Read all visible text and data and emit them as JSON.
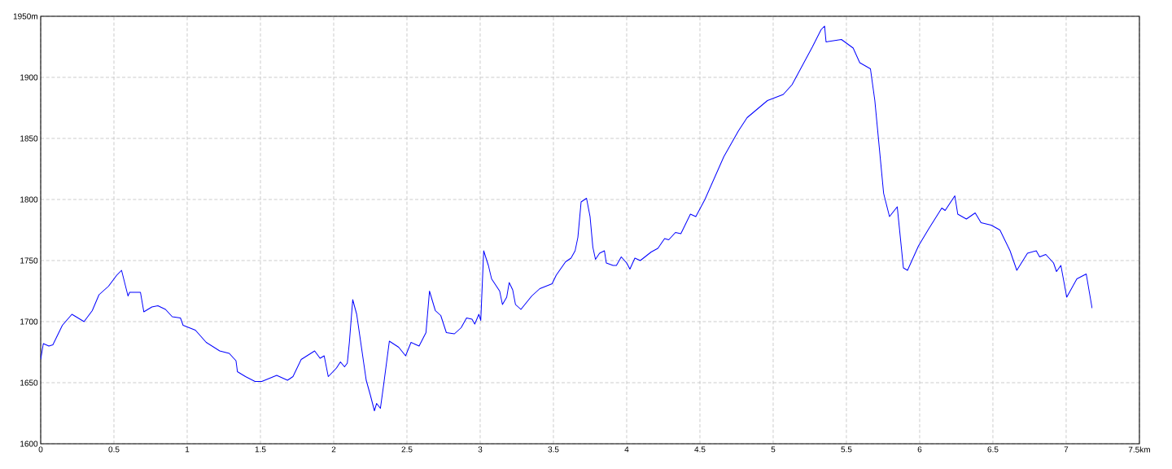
{
  "chart_data": {
    "type": "line",
    "color": "#0000ff",
    "grid": true,
    "line_style": "solid",
    "marker": "none",
    "xlim": [
      0,
      7.5
    ],
    "ylim": [
      1600,
      1950
    ],
    "xticks": [
      0,
      0.5,
      1,
      1.5,
      2,
      2.5,
      3,
      3.5,
      4,
      4.5,
      5,
      5.5,
      6,
      6.5,
      7,
      {
        "value": 7.5,
        "label": "7.5km"
      }
    ],
    "yticks": [
      1600,
      1650,
      1700,
      1750,
      1800,
      1850,
      1900,
      {
        "value": 1950,
        "label": "1950m"
      }
    ],
    "x": [
      0,
      0.018,
      0.056,
      0.083,
      0.148,
      0.213,
      0.241,
      0.296,
      0.352,
      0.398,
      0.463,
      0.519,
      0.552,
      0.596,
      0.607,
      0.681,
      0.704,
      0.759,
      0.8,
      0.852,
      0.898,
      0.954,
      0.972,
      1.056,
      1.13,
      1.222,
      1.287,
      1.333,
      1.343,
      1.398,
      1.463,
      1.509,
      1.611,
      1.685,
      1.722,
      1.778,
      1.87,
      1.907,
      1.935,
      1.963,
      2.019,
      2.046,
      2.074,
      2.093,
      2.107,
      2.13,
      2.157,
      2.222,
      2.25,
      2.278,
      2.293,
      2.319,
      2.343,
      2.38,
      2.444,
      2.491,
      2.528,
      2.583,
      2.63,
      2.654,
      2.694,
      2.731,
      2.769,
      2.824,
      2.87,
      2.907,
      2.944,
      2.963,
      2.991,
      3.004,
      3.024,
      3.056,
      3.078,
      3.111,
      3.133,
      3.152,
      3.181,
      3.198,
      3.222,
      3.241,
      3.278,
      3.352,
      3.407,
      3.491,
      3.519,
      3.583,
      3.62,
      3.648,
      3.667,
      3.689,
      3.726,
      3.75,
      3.769,
      3.787,
      3.815,
      3.848,
      3.861,
      3.907,
      3.93,
      3.963,
      4.0,
      4.022,
      4.056,
      4.093,
      4.167,
      4.213,
      4.259,
      4.287,
      4.333,
      4.37,
      4.435,
      4.472,
      4.534,
      4.663,
      4.762,
      4.822,
      4.961,
      5.069,
      5.129,
      5.268,
      5.327,
      5.351,
      5.361,
      5.466,
      5.546,
      5.591,
      5.664,
      5.694,
      5.754,
      5.794,
      5.847,
      5.889,
      5.917,
      5.992,
      6.062,
      6.151,
      6.174,
      6.24,
      6.26,
      6.319,
      6.379,
      6.419,
      6.488,
      6.548,
      6.617,
      6.663,
      6.736,
      6.796,
      6.819,
      6.861,
      6.914,
      6.934,
      6.964,
      7.004,
      7.073,
      7.137,
      7.177
    ],
    "values": [
      1669,
      1682,
      1680,
      1681,
      1697,
      1706,
      1704,
      1700,
      1709,
      1722,
      1729,
      1738,
      1742,
      1721,
      1724,
      1724,
      1708,
      1712,
      1713,
      1710,
      1704,
      1703,
      1697,
      1693,
      1683,
      1676,
      1674,
      1668,
      1659,
      1655,
      1651,
      1651,
      1656,
      1652,
      1655,
      1669,
      1676,
      1670,
      1672,
      1655,
      1662,
      1667,
      1663,
      1666,
      1683,
      1718,
      1706,
      1652,
      1640,
      1627,
      1633,
      1629,
      1650,
      1684,
      1679,
      1672,
      1683,
      1680,
      1691,
      1725,
      1709,
      1705,
      1691,
      1690,
      1695,
      1703,
      1702,
      1698,
      1706,
      1701,
      1758,
      1746,
      1735,
      1729,
      1725,
      1714,
      1720,
      1732,
      1726,
      1714,
      1710,
      1721,
      1727,
      1731,
      1738,
      1749,
      1752,
      1758,
      1769,
      1798,
      1801,
      1786,
      1761,
      1751,
      1756,
      1758,
      1748,
      1746,
      1746,
      1753,
      1748,
      1743,
      1752,
      1750,
      1757,
      1760,
      1768,
      1767,
      1773,
      1772,
      1788,
      1786,
      1800,
      1835,
      1856,
      1867,
      1881,
      1886,
      1894,
      1925,
      1939,
      1942,
      1929,
      1931,
      1924,
      1912,
      1907,
      1881,
      1805,
      1786,
      1794,
      1744,
      1742,
      1762,
      1776,
      1793,
      1791,
      1803,
      1788,
      1784,
      1789,
      1781,
      1779,
      1775,
      1758,
      1742,
      1756,
      1758,
      1753,
      1755,
      1748,
      1741,
      1746,
      1720,
      1735,
      1739,
      1711
    ]
  }
}
